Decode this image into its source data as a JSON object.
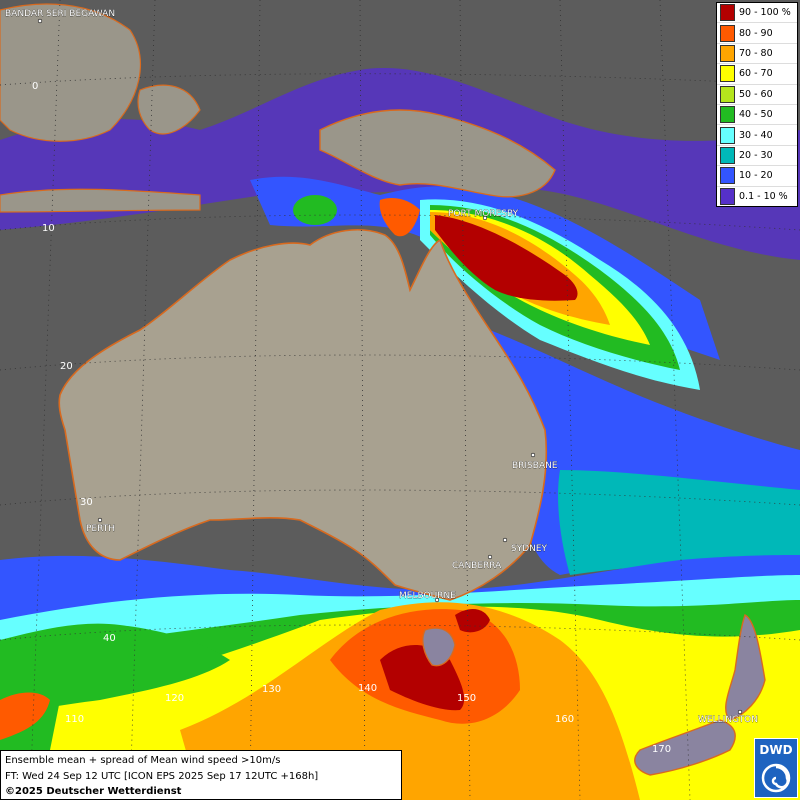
{
  "legend": {
    "items": [
      {
        "label": "90 - 100 %",
        "color": "#b30000"
      },
      {
        "label": "80 - 90",
        "color": "#ff5a00"
      },
      {
        "label": "70 - 80",
        "color": "#ffa500"
      },
      {
        "label": "60 - 70",
        "color": "#ffff00"
      },
      {
        "label": "50 - 60",
        "color": "#b5e61d"
      },
      {
        "label": "40 - 50",
        "color": "#22bb22"
      },
      {
        "label": "30 - 40",
        "color": "#66ffff"
      },
      {
        "label": "20 - 30",
        "color": "#00b8b8"
      },
      {
        "label": "10 - 20",
        "color": "#3355ff"
      },
      {
        "label": "0.1 - 10 %",
        "color": "#5530c8"
      }
    ]
  },
  "cities": {
    "bandar": "BANDAR SERI BEGAWAN",
    "port_moresby": "PORT MORESBY",
    "brisbane": "BRISBANE",
    "perth": "PERTH",
    "sydney": "SYDNEY",
    "canberra": "CANBERRA",
    "melbourne": "MELBOURNE",
    "wellington": "WELLINGTON"
  },
  "grid_labels": {
    "lat_0": "0",
    "lat_10": "10",
    "lat_20": "20",
    "lat_30": "30",
    "lat_40": "40",
    "lon_110": "110",
    "lon_120": "120",
    "lon_130": "130",
    "lon_140": "140",
    "lon_150": "150",
    "lon_160": "160",
    "lon_170": "170"
  },
  "caption": {
    "line1": "Ensemble mean + spread of Mean wind speed >10m/s",
    "line2": "FT: Wed 24 Sep 12 UTC [ICON EPS 2025 Sep 17 12UTC +168h]",
    "line3": "©2025 Deutscher Wetterdienst"
  },
  "logo": {
    "text": "DWD"
  }
}
